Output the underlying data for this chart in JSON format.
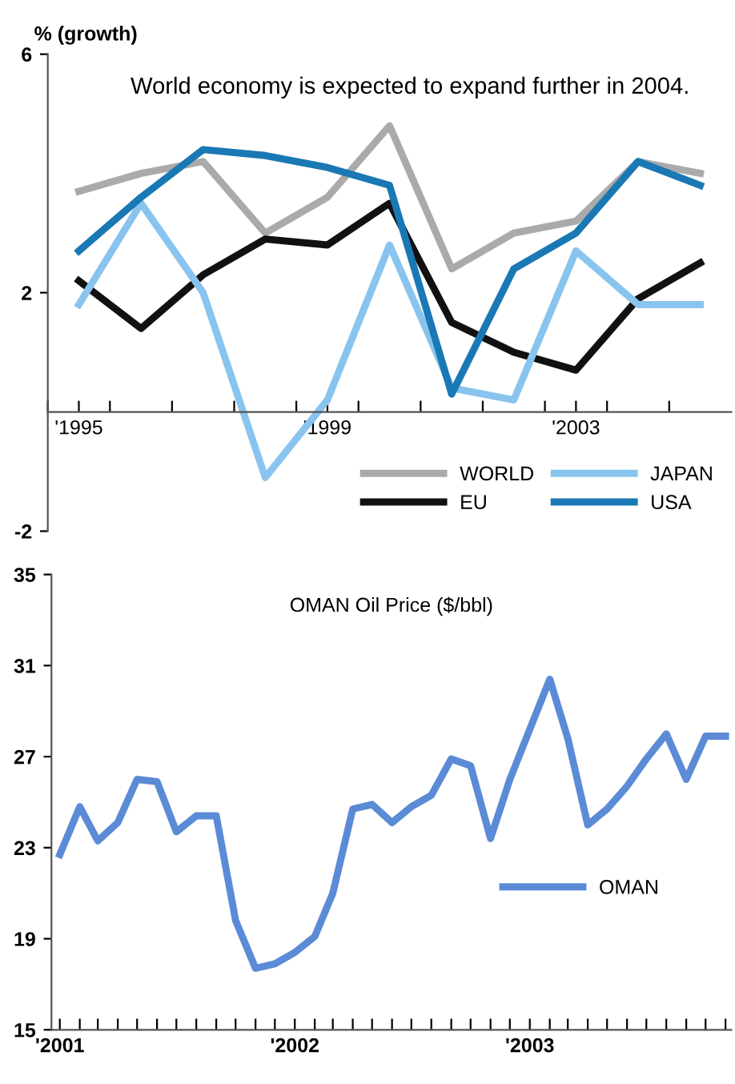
{
  "chart_data": [
    {
      "type": "line",
      "title": "World economy is expected to expand further in 2004.",
      "ylabel": "% (growth)",
      "x": [
        1995,
        1996,
        1997,
        1998,
        1999,
        2000,
        2001,
        2002,
        2003,
        2004,
        2005
      ],
      "series": [
        {
          "name": "WORLD",
          "color": "#aaaaaa",
          "values": [
            3.7,
            4.0,
            4.2,
            3.0,
            3.6,
            4.8,
            2.4,
            3.0,
            3.2,
            4.2,
            4.0
          ]
        },
        {
          "name": "EU",
          "color": "#111111",
          "values": [
            2.2,
            1.4,
            2.3,
            2.9,
            2.8,
            3.5,
            1.5,
            1.0,
            0.7,
            1.9,
            2.5
          ]
        },
        {
          "name": "JAPAN",
          "color": "#88c4ee",
          "values": [
            1.8,
            3.5,
            2.0,
            -1.1,
            0.2,
            2.8,
            0.4,
            0.2,
            2.7,
            1.8,
            1.8
          ]
        },
        {
          "name": "USA",
          "color": "#1a78b4",
          "values": [
            2.7,
            3.6,
            4.4,
            4.3,
            4.1,
            3.8,
            0.3,
            2.4,
            3.0,
            4.2,
            3.8
          ]
        }
      ],
      "xlim": [
        1994.5,
        2005.5
      ],
      "xticks": [
        {
          "value": 1994.5,
          "label": null
        },
        {
          "value": 1995,
          "label": "'1995"
        },
        {
          "value": 1995.5,
          "label": null
        },
        {
          "value": 1996.5,
          "label": null
        },
        {
          "value": 1997.5,
          "label": null
        },
        {
          "value": 1998.5,
          "label": null
        },
        {
          "value": 1999,
          "label": "'1999"
        },
        {
          "value": 1999.5,
          "label": null
        },
        {
          "value": 2000.5,
          "label": null
        },
        {
          "value": 2001.5,
          "label": null
        },
        {
          "value": 2002.5,
          "label": null
        },
        {
          "value": 2003,
          "label": "'2003"
        },
        {
          "value": 2003.5,
          "label": null
        },
        {
          "value": 2004.5,
          "label": null
        }
      ],
      "ylim": [
        -2,
        6
      ],
      "yticks": [
        -2,
        2,
        6
      ],
      "grid": false,
      "legend": "bottom right",
      "marker": "none",
      "line_style": "solid"
    },
    {
      "type": "line",
      "title": "OMAN Oil Price ($/bbl)",
      "x": [
        "2001-01",
        "2001-02",
        "2001-03",
        "2001-04",
        "2001-05",
        "2001-06",
        "2001-07",
        "2001-08",
        "2001-09",
        "2001-10",
        "2001-11",
        "2001-12",
        "2002-01",
        "2002-02",
        "2002-03",
        "2002-04",
        "2002-05",
        "2002-06",
        "2002-07",
        "2002-08",
        "2002-09",
        "2002-10",
        "2002-11",
        "2002-12",
        "2003-01",
        "2003-02",
        "2003-03",
        "2003-04",
        "2003-05",
        "2003-06",
        "2003-07",
        "2003-08",
        "2003-09",
        "2003-10",
        "2003-11"
      ],
      "series": [
        {
          "name": "OMAN",
          "color": "#5b8bd6",
          "values": [
            22.7,
            24.8,
            23.3,
            24.1,
            26.0,
            25.9,
            23.7,
            24.4,
            24.4,
            19.8,
            17.7,
            17.9,
            18.4,
            19.1,
            21.0,
            24.7,
            24.9,
            24.1,
            24.8,
            25.3,
            26.9,
            26.6,
            23.4,
            26.0,
            28.2,
            30.4,
            27.8,
            24.0,
            24.7,
            25.7,
            26.9,
            28.0,
            26.0,
            27.9,
            27.9
          ]
        }
      ],
      "xlim": [
        "2000-12-19",
        "2003-11-10"
      ],
      "xticks": [
        {
          "value": "2001-01",
          "label": "'2001"
        },
        {
          "value": "2001-02",
          "label": null
        },
        {
          "value": "2001-03",
          "label": null
        },
        {
          "value": "2001-04",
          "label": null
        },
        {
          "value": "2001-05",
          "label": null
        },
        {
          "value": "2001-06",
          "label": null
        },
        {
          "value": "2001-07",
          "label": null
        },
        {
          "value": "2001-08",
          "label": null
        },
        {
          "value": "2001-09",
          "label": null
        },
        {
          "value": "2001-10",
          "label": null
        },
        {
          "value": "2001-11",
          "label": null
        },
        {
          "value": "2001-12",
          "label": null
        },
        {
          "value": "2002-01",
          "label": "'2002"
        },
        {
          "value": "2002-02",
          "label": null
        },
        {
          "value": "2002-03",
          "label": null
        },
        {
          "value": "2002-04",
          "label": null
        },
        {
          "value": "2002-05",
          "label": null
        },
        {
          "value": "2002-06",
          "label": null
        },
        {
          "value": "2002-07",
          "label": null
        },
        {
          "value": "2002-08",
          "label": null
        },
        {
          "value": "2002-09",
          "label": null
        },
        {
          "value": "2002-10",
          "label": null
        },
        {
          "value": "2002-11",
          "label": null
        },
        {
          "value": "2002-12",
          "label": null
        },
        {
          "value": "2003-01",
          "label": "'2003"
        },
        {
          "value": "2003-02",
          "label": null
        },
        {
          "value": "2003-03",
          "label": null
        },
        {
          "value": "2003-04",
          "label": null
        },
        {
          "value": "2003-05",
          "label": null
        },
        {
          "value": "2003-06",
          "label": null
        },
        {
          "value": "2003-07",
          "label": null
        },
        {
          "value": "2003-08",
          "label": null
        },
        {
          "value": "2003-09",
          "label": null
        },
        {
          "value": "2003-10",
          "label": null
        },
        {
          "value": "2003-11",
          "label": null
        }
      ],
      "ylim": [
        15,
        35
      ],
      "yticks": [
        15,
        19,
        23,
        27,
        31,
        35
      ],
      "grid": false,
      "legend": "right",
      "marker": "none",
      "line_style": "solid"
    }
  ]
}
